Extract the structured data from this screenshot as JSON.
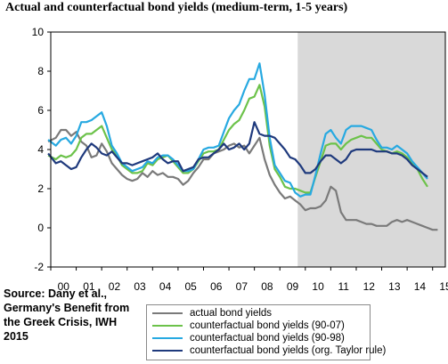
{
  "title": "Actual and counterfactual bond yields (medium-term, 1-5 years)",
  "source": "Source: Dany et al., Germany's Benefit from the Greek Crisis, IWH 2015",
  "chart_data": {
    "type": "line",
    "x_ticks": [
      "00",
      "01",
      "02",
      "03",
      "04",
      "05",
      "06",
      "07",
      "08",
      "09",
      "10",
      "11",
      "12",
      "13",
      "14",
      "15"
    ],
    "xlim": [
      0,
      15.5
    ],
    "ylim": [
      -2,
      10
    ],
    "y_ticks": [
      -2,
      0,
      2,
      4,
      6,
      8,
      10
    ],
    "shaded_region": {
      "from": 9.7,
      "to": 15.5,
      "color": "#d9d9d9"
    },
    "grid": false,
    "legend_position": "bottom",
    "series": [
      {
        "name": "actual bond yields",
        "color": "#7a7a7a",
        "x": [
          -0.1,
          0.2,
          0.4,
          0.6,
          0.8,
          1.0,
          1.2,
          1.4,
          1.6,
          1.8,
          2.0,
          2.2,
          2.4,
          2.6,
          2.8,
          3.0,
          3.2,
          3.4,
          3.6,
          3.8,
          4.0,
          4.2,
          4.4,
          4.6,
          4.8,
          5.0,
          5.2,
          5.4,
          5.6,
          5.8,
          6.0,
          6.2,
          6.4,
          6.6,
          6.8,
          7.0,
          7.2,
          7.4,
          7.6,
          7.8,
          8.0,
          8.2,
          8.4,
          8.6,
          8.8,
          9.0,
          9.2,
          9.4,
          9.6,
          9.8,
          10.0,
          10.2,
          10.4,
          10.6,
          10.8,
          11.0,
          11.2,
          11.4,
          11.6,
          11.8,
          12.0,
          12.2,
          12.4,
          12.6,
          12.8,
          13.0,
          13.2,
          13.4,
          13.6,
          13.8,
          14.0,
          14.2,
          14.4,
          14.6,
          14.8,
          15.0,
          15.2
        ],
        "y": [
          4.4,
          4.6,
          5.0,
          5.0,
          4.7,
          4.9,
          4.4,
          4.2,
          3.6,
          3.7,
          4.3,
          3.9,
          3.3,
          3.0,
          2.7,
          2.5,
          2.4,
          2.5,
          2.8,
          2.6,
          2.9,
          2.7,
          2.8,
          2.6,
          2.6,
          2.5,
          2.2,
          2.4,
          2.8,
          3.1,
          3.5,
          3.5,
          3.8,
          3.9,
          4.0,
          4.2,
          4.3,
          4.1,
          4.2,
          3.8,
          4.2,
          4.6,
          3.5,
          2.7,
          2.2,
          1.8,
          1.5,
          1.6,
          1.4,
          1.2,
          0.9,
          1.0,
          1.0,
          1.1,
          1.4,
          2.1,
          1.9,
          0.8,
          0.4,
          0.4,
          0.4,
          0.3,
          0.2,
          0.2,
          0.1,
          0.1,
          0.1,
          0.3,
          0.4,
          0.3,
          0.4,
          0.3,
          0.2,
          0.1,
          0.0,
          -0.1,
          -0.1
        ]
      },
      {
        "name": "counterfactual bond yields (90-07)",
        "color": "#6cc24a",
        "x": [
          -0.1,
          0.2,
          0.4,
          0.6,
          0.8,
          1.0,
          1.2,
          1.4,
          1.6,
          1.8,
          2.0,
          2.2,
          2.4,
          2.6,
          2.8,
          3.0,
          3.2,
          3.4,
          3.6,
          3.8,
          4.0,
          4.2,
          4.4,
          4.6,
          4.8,
          5.0,
          5.2,
          5.4,
          5.6,
          5.8,
          6.0,
          6.2,
          6.4,
          6.6,
          6.8,
          7.0,
          7.2,
          7.4,
          7.6,
          7.8,
          8.0,
          8.2,
          8.4,
          8.6,
          8.8,
          9.0,
          9.2,
          9.4,
          9.6,
          9.8,
          10.0,
          10.2,
          10.4,
          10.6,
          10.8,
          11.0,
          11.2,
          11.4,
          11.6,
          11.8,
          12.0,
          12.2,
          12.4,
          12.6,
          12.8,
          13.0,
          13.2,
          13.4,
          13.6,
          13.8,
          14.0,
          14.2,
          14.4,
          14.6,
          14.8
        ],
        "y": [
          3.7,
          3.5,
          3.7,
          3.6,
          3.7,
          4.0,
          4.6,
          4.8,
          4.8,
          5.0,
          5.2,
          4.6,
          4.0,
          3.7,
          3.2,
          3.0,
          2.8,
          2.8,
          2.9,
          3.3,
          3.2,
          3.5,
          3.6,
          3.7,
          3.4,
          3.1,
          2.8,
          2.8,
          3.0,
          3.4,
          3.8,
          3.9,
          3.9,
          4.0,
          4.5,
          5.0,
          5.3,
          5.5,
          6.0,
          6.6,
          6.7,
          7.3,
          6.2,
          4.2,
          3.0,
          2.6,
          2.1,
          2.0,
          2.0,
          1.9,
          1.8,
          1.8,
          2.6,
          3.4,
          4.2,
          4.3,
          4.3,
          4.0,
          4.3,
          4.5,
          4.6,
          4.7,
          4.6,
          4.6,
          4.3,
          4.0,
          3.9,
          3.8,
          3.9,
          3.8,
          3.6,
          3.3,
          3.0,
          2.5,
          2.1
        ]
      },
      {
        "name": "counterfactual bond yields (90-98)",
        "color": "#27a9e1",
        "x": [
          -0.1,
          0.2,
          0.4,
          0.6,
          0.8,
          1.0,
          1.2,
          1.4,
          1.6,
          1.8,
          2.0,
          2.2,
          2.4,
          2.6,
          2.8,
          3.0,
          3.2,
          3.4,
          3.6,
          3.8,
          4.0,
          4.2,
          4.4,
          4.6,
          4.8,
          5.0,
          5.2,
          5.4,
          5.6,
          5.8,
          6.0,
          6.2,
          6.4,
          6.6,
          6.8,
          7.0,
          7.2,
          7.4,
          7.6,
          7.8,
          8.0,
          8.2,
          8.4,
          8.6,
          8.8,
          9.0,
          9.2,
          9.4,
          9.6,
          9.8,
          10.0,
          10.2,
          10.4,
          10.6,
          10.8,
          11.0,
          11.2,
          11.4,
          11.6,
          11.8,
          12.0,
          12.2,
          12.4,
          12.6,
          12.8,
          13.0,
          13.2,
          13.4,
          13.6,
          13.8,
          14.0,
          14.2,
          14.4,
          14.6,
          14.8
        ],
        "y": [
          4.5,
          4.2,
          4.5,
          4.6,
          4.3,
          4.7,
          5.4,
          5.4,
          5.5,
          5.7,
          5.9,
          5.2,
          4.2,
          3.8,
          3.3,
          3.1,
          2.9,
          3.0,
          3.1,
          3.4,
          3.3,
          3.6,
          3.7,
          3.7,
          3.5,
          3.2,
          2.9,
          2.9,
          3.0,
          3.5,
          4.0,
          4.1,
          4.1,
          4.2,
          4.9,
          5.6,
          6.0,
          6.3,
          7.0,
          7.6,
          7.6,
          8.4,
          6.8,
          4.6,
          3.2,
          2.8,
          2.4,
          2.3,
          1.8,
          1.6,
          1.7,
          1.7,
          2.7,
          3.8,
          4.8,
          5.0,
          4.6,
          4.3,
          5.0,
          5.2,
          5.2,
          5.2,
          5.1,
          5.0,
          4.5,
          4.1,
          4.1,
          4.0,
          4.2,
          4.0,
          3.8,
          3.4,
          3.1,
          2.8,
          2.5
        ]
      },
      {
        "name": "counterfactual bond yields (org. Taylor rule)",
        "color": "#1f3a7d",
        "x": [
          -0.1,
          0.2,
          0.4,
          0.6,
          0.8,
          1.0,
          1.2,
          1.4,
          1.6,
          1.8,
          2.0,
          2.2,
          2.4,
          2.6,
          2.8,
          3.0,
          3.2,
          3.4,
          3.6,
          3.8,
          4.0,
          4.2,
          4.4,
          4.6,
          4.8,
          5.0,
          5.2,
          5.4,
          5.6,
          5.8,
          6.0,
          6.2,
          6.4,
          6.6,
          6.8,
          7.0,
          7.2,
          7.4,
          7.6,
          7.8,
          8.0,
          8.2,
          8.4,
          8.6,
          8.8,
          9.0,
          9.2,
          9.4,
          9.6,
          9.8,
          10.0,
          10.2,
          10.4,
          10.6,
          10.8,
          11.0,
          11.2,
          11.4,
          11.6,
          11.8,
          12.0,
          12.2,
          12.4,
          12.6,
          12.8,
          13.0,
          13.2,
          13.4,
          13.6,
          13.8,
          14.0,
          14.2,
          14.4,
          14.6,
          14.8
        ],
        "y": [
          3.8,
          3.3,
          3.4,
          3.2,
          3.0,
          3.1,
          3.6,
          4.0,
          4.3,
          4.1,
          3.8,
          3.7,
          3.9,
          3.6,
          3.3,
          3.3,
          3.2,
          3.3,
          3.4,
          3.5,
          3.6,
          3.8,
          3.5,
          3.3,
          3.4,
          3.4,
          2.9,
          3.0,
          3.1,
          3.5,
          3.6,
          3.6,
          3.8,
          4.0,
          4.3,
          4.0,
          4.1,
          4.3,
          4.0,
          4.3,
          5.4,
          4.8,
          4.7,
          4.7,
          4.6,
          4.3,
          4.0,
          3.6,
          3.5,
          3.2,
          2.8,
          2.8,
          3.0,
          3.4,
          3.7,
          3.7,
          3.5,
          3.3,
          3.5,
          3.9,
          4.0,
          4.0,
          4.0,
          4.0,
          3.9,
          3.9,
          3.9,
          3.8,
          3.8,
          3.7,
          3.5,
          3.2,
          3.0,
          2.8,
          2.6
        ]
      }
    ]
  }
}
